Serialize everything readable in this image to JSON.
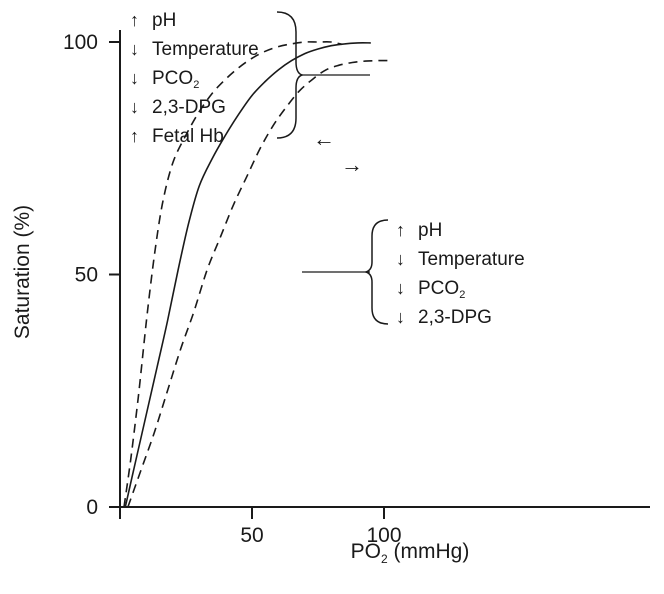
{
  "chart_data": {
    "type": "line",
    "xlabel": "PO₂ (mmHg)",
    "xlabel_main": "PO",
    "xlabel_sub": "2",
    "xlabel_rest": " (mmHg)",
    "ylabel": "Saturation (%)",
    "xlim": [
      0,
      102
    ],
    "ylim": [
      0,
      100
    ],
    "xticks": [
      "50",
      "100"
    ],
    "xtick_values": [
      50,
      100
    ],
    "yticks": [
      "0",
      "50",
      "100"
    ],
    "ytick_values": [
      0,
      50,
      100
    ],
    "series": [
      {
        "style": "dashed",
        "points": [
          [
            1.5,
            0
          ],
          [
            4,
            10
          ],
          [
            7,
            24
          ],
          [
            10,
            40
          ],
          [
            13,
            54
          ],
          [
            16,
            65
          ],
          [
            20,
            74
          ],
          [
            25,
            80
          ],
          [
            30,
            85
          ],
          [
            35,
            89
          ],
          [
            40,
            92
          ],
          [
            45,
            94.5
          ],
          [
            50,
            96.5
          ],
          [
            55,
            98
          ],
          [
            60,
            99
          ],
          [
            65,
            99.6
          ],
          [
            70,
            100
          ],
          [
            75,
            100
          ],
          [
            80,
            100
          ],
          [
            84,
            99.5
          ]
        ]
      },
      {
        "style": "solid",
        "points": [
          [
            2,
            0
          ],
          [
            6,
            10
          ],
          [
            10,
            20
          ],
          [
            14,
            30
          ],
          [
            18,
            40
          ],
          [
            22,
            51
          ],
          [
            26,
            61
          ],
          [
            30,
            69
          ],
          [
            35,
            75
          ],
          [
            40,
            80
          ],
          [
            45,
            84.5
          ],
          [
            50,
            88.5
          ],
          [
            55,
            91.5
          ],
          [
            60,
            94
          ],
          [
            65,
            96
          ],
          [
            70,
            97.5
          ],
          [
            75,
            98.5
          ],
          [
            80,
            99.2
          ],
          [
            85,
            99.6
          ],
          [
            90,
            99.8
          ],
          [
            95,
            99.8
          ]
        ]
      },
      {
        "style": "dashed",
        "points": [
          [
            3,
            0
          ],
          [
            8,
            8
          ],
          [
            13,
            16
          ],
          [
            18,
            25
          ],
          [
            23,
            34
          ],
          [
            28,
            42
          ],
          [
            33,
            51
          ],
          [
            38,
            58
          ],
          [
            43,
            65
          ],
          [
            48,
            71
          ],
          [
            53,
            77
          ],
          [
            58,
            82
          ],
          [
            63,
            86
          ],
          [
            68,
            89.5
          ],
          [
            73,
            92
          ],
          [
            78,
            94
          ],
          [
            83,
            95
          ],
          [
            88,
            95.6
          ],
          [
            93,
            95.9
          ],
          [
            98,
            96
          ],
          [
            102,
            96
          ]
        ]
      }
    ],
    "annotations": {
      "left_shift": [
        {
          "arrow": "↑",
          "text": "pH",
          "sub": ""
        },
        {
          "arrow": "↓",
          "text": "Temperature",
          "sub": ""
        },
        {
          "arrow": "↓",
          "text": "PCO",
          "sub": "2"
        },
        {
          "arrow": "↓",
          "text": "2,3-DPG",
          "sub": ""
        },
        {
          "arrow": "↑",
          "text": "Fetal Hb",
          "sub": ""
        }
      ],
      "right_shift": [
        {
          "arrow": "↑",
          "text": "pH",
          "sub": ""
        },
        {
          "arrow": "↓",
          "text": "Temperature",
          "sub": ""
        },
        {
          "arrow": "↓",
          "text": "PCO",
          "sub": "2"
        },
        {
          "arrow": "↓",
          "text": "2,3-DPG",
          "sub": ""
        }
      ],
      "shift_arrows": {
        "left": "←",
        "right": "→"
      }
    }
  }
}
